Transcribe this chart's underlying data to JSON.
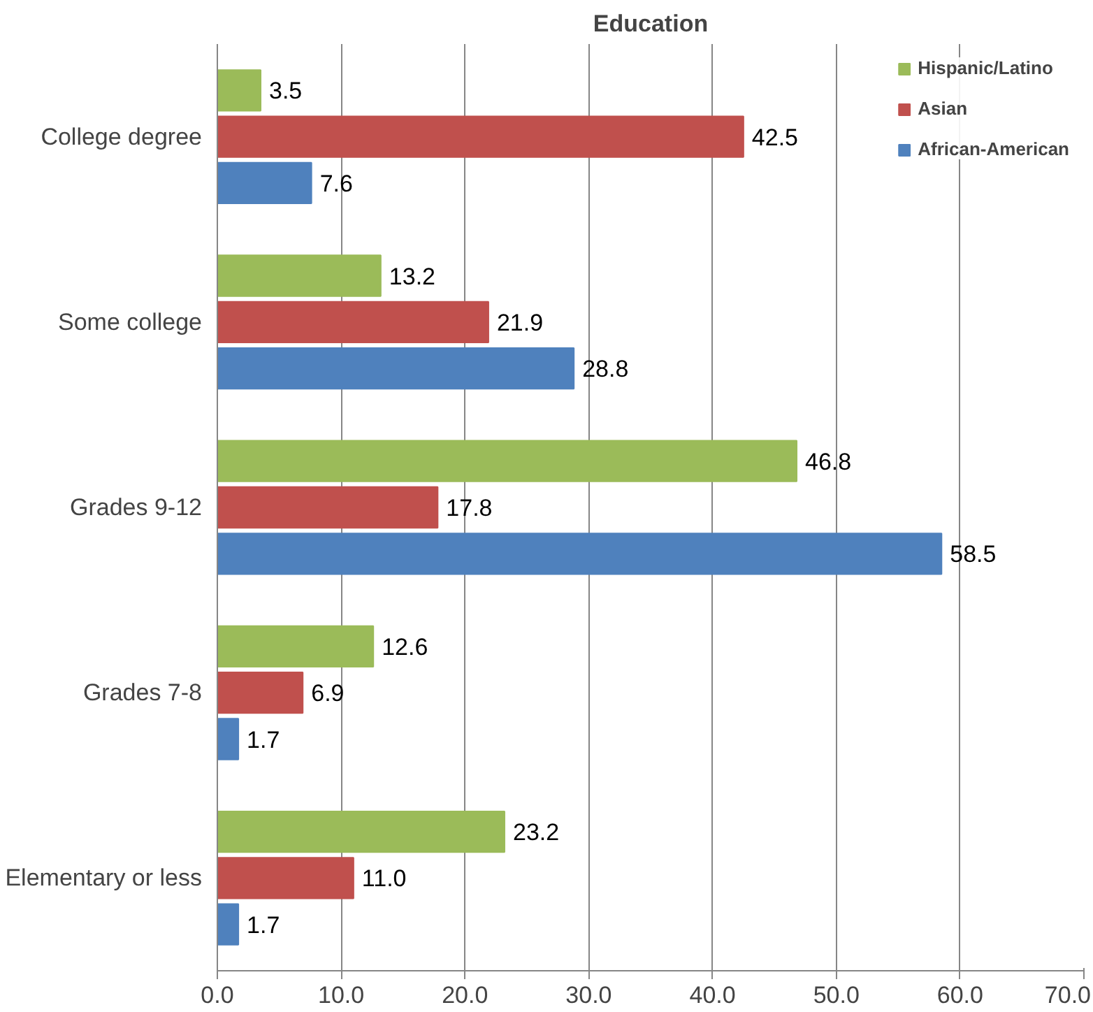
{
  "chart_data": {
    "type": "bar",
    "orientation": "horizontal",
    "title": "Education",
    "categories": [
      "College degree",
      "Some college",
      "Grades 9-12",
      "Grades 7-8",
      "Elementary or less"
    ],
    "series": [
      {
        "name": "Hispanic/Latino",
        "color": "#9bbb59",
        "values": [
          3.5,
          13.2,
          46.8,
          12.6,
          23.2
        ],
        "value_labels": [
          "3.5",
          "13.2",
          "46.8",
          "12.6",
          "23.2"
        ]
      },
      {
        "name": "Asian",
        "color": "#c0504d",
        "values": [
          42.5,
          21.9,
          17.8,
          6.9,
          11.0
        ],
        "value_labels": [
          "42.5",
          "21.9",
          "17.8",
          "6.9",
          "11.0"
        ]
      },
      {
        "name": "African-American",
        "color": "#4f81bd",
        "values": [
          7.6,
          28.8,
          58.5,
          1.7,
          1.7
        ],
        "value_labels": [
          "7.6",
          "28.8",
          "58.5",
          "1.7",
          "1.7"
        ]
      }
    ],
    "xlim": [
      0,
      70
    ],
    "xticks": [
      {
        "value": 0,
        "label": "0.0"
      },
      {
        "value": 10,
        "label": "10.0"
      },
      {
        "value": 20,
        "label": "20.0"
      },
      {
        "value": 30,
        "label": "30.0"
      },
      {
        "value": 40,
        "label": "40.0"
      },
      {
        "value": 50,
        "label": "50.0"
      },
      {
        "value": 60,
        "label": "60.0"
      },
      {
        "value": 70,
        "label": "70.0"
      }
    ],
    "grid": "x",
    "legend": "top right"
  }
}
